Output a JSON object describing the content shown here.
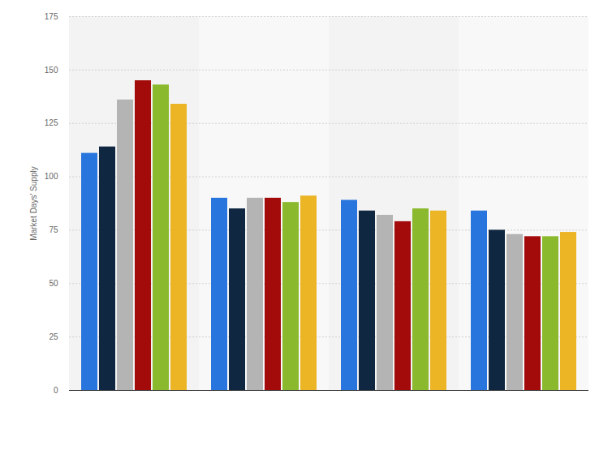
{
  "chart_data": {
    "type": "bar",
    "y_label": "Market Days' Supply",
    "categories": [
      null,
      null,
      null,
      null
    ],
    "series": [
      {
        "color": "#2876dd",
        "values": [
          111,
          90,
          89,
          84
        ]
      },
      {
        "color": "#0f2741",
        "values": [
          114,
          85,
          84,
          75
        ]
      },
      {
        "color": "#b4b4b4",
        "values": [
          136,
          90,
          82,
          73
        ]
      },
      {
        "color": "#a30b0b",
        "values": [
          145,
          90,
          79,
          72
        ]
      },
      {
        "color": "#8ab92d",
        "values": [
          143,
          88,
          85,
          72
        ]
      },
      {
        "color": "#ecb526",
        "values": [
          134,
          91,
          84,
          74
        ]
      }
    ],
    "ylim": [
      0,
      175
    ],
    "yticks": [
      0,
      25,
      50,
      75,
      100,
      125,
      150,
      175
    ],
    "grid": true
  }
}
